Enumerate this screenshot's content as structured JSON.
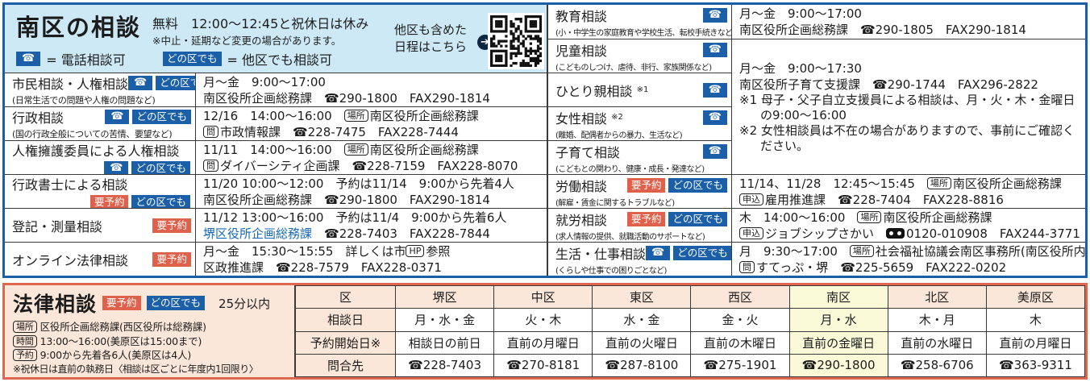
{
  "legend": {
    "tel_symbol": "☎",
    "any_label": "どの区でも",
    "reserve_label": "要予約"
  },
  "colors": {
    "blue": "#1a5fa8",
    "light_blue": "#cde9f6",
    "red_badge": "#e0614b",
    "red_border": "#e0674f",
    "peach": "#fbe7d9",
    "yellow_highlight": "#fafad9",
    "link_blue": "#1667b8"
  },
  "top": {
    "title": "南区の相談",
    "free_label": "無料",
    "hours": "12:00〜12:45と祝休日は休み",
    "note": "※中止・延期など変更の場合があります。",
    "tel_legend_text": "= 電話相談可",
    "any_legend_text": "= 他区でも相談可",
    "qr_caption1": "他区も含めた",
    "qr_caption2": "日程はこちら",
    "arrow_glyph": "➔",
    "left_rows": [
      {
        "name": "市民相談・人権相談",
        "desc": "(日常生活での問題や人権の問題など)",
        "badges": [
          "tel",
          "any"
        ],
        "badges_newline": false,
        "detail": [
          "月〜金　9:00〜17:00",
          "南区役所企画総務課　☎290-1800　FAX290-1814"
        ]
      },
      {
        "name": "行政相談",
        "desc": "(国の行政全般についての苦情、要望など)",
        "badges": [
          "tel",
          "any"
        ],
        "badges_newline": false,
        "detail": [
          "12/16　14:00〜16:00　[[box:場所]]南区役所企画総務課",
          "[[box:問]]市政情報課　☎228-7475　FAX228-7444"
        ]
      },
      {
        "name": "人権擁護委員による人権相談",
        "desc": "",
        "badges": [
          "tel",
          "any"
        ],
        "badges_newline": true,
        "detail": [
          "11/11　14:00〜16:00　[[box:場所]]南区役所企画総務課",
          "[[box:問]]ダイバーシティ企画課　☎228-7159　FAX228-8070"
        ]
      },
      {
        "name": "行政書士による相談",
        "desc": "",
        "badges": [
          "resv",
          "any"
        ],
        "badges_newline": true,
        "detail": [
          "11/20 10:00〜12:00　予約は11/14　9:00から先着4人",
          "南区役所企画総務課　☎290-1800　FAX290-1814"
        ]
      },
      {
        "name": "登記・測量相談",
        "desc": "",
        "badges": [
          "resv"
        ],
        "badges_newline": false,
        "detail": [
          "11/12 13:00〜16:00　予約は11/4　9:00から先着6人",
          "[[blue:堺区役所企画総務課]]　☎228-7403　FAX228-7844"
        ]
      },
      {
        "name": "オンライン法律相談",
        "desc": "",
        "badges": [
          "resv"
        ],
        "badges_newline": false,
        "detail": [
          "月〜金　15:30〜15:55　詳しくは市[[box:HP]]参照",
          "区政推進課　☎228-7579　FAX228-0371"
        ]
      }
    ],
    "right_rows": [
      {
        "name": "教育相談",
        "desc": "(小・中学生の家庭教育や学校生活、転校手続きなど)",
        "badges": [
          "tel"
        ]
      },
      {
        "name": "児童相談",
        "desc": "(こどものしつけ、虐待、非行、家族関係など)",
        "badges": [
          "tel"
        ]
      },
      {
        "name": "ひとり親相談 [[sup:※1]]",
        "desc": "",
        "badges": [
          "tel"
        ]
      },
      {
        "name": "女性相談 [[sup:※2]]",
        "desc": "(離婚、配偶者からの暴力、生活など)",
        "badges": [
          "tel"
        ]
      },
      {
        "name": "子育て相談",
        "desc": "(こどもとの関わり、健康・成長・発達など)",
        "badges": [
          "tel"
        ]
      },
      {
        "name": "労働相談",
        "desc": "(解雇・賃金に関するトラブルなど)",
        "badges": [
          "resv",
          "any"
        ]
      },
      {
        "name": "就労相談",
        "desc": "(求人情報の提供、就職活動のサポートなど)",
        "badges": [
          "resv",
          "any"
        ]
      },
      {
        "name": "生活・仕事相談",
        "desc": "(くらしや仕事での困りごとなど)",
        "badges": [
          "tel",
          "any"
        ]
      }
    ],
    "right_details": [
      {
        "row": 1,
        "span": 1,
        "lines": [
          "月〜金　9:00〜17:00",
          "南区役所企画総務課　☎290-1805　FAX290-1814"
        ]
      },
      {
        "row": 2,
        "span": 4,
        "lines": [
          "月〜金　9:00〜17:30",
          "南区役所子育て支援課　☎290-1744　FAX296-2822",
          "※1 母子・父子自立支援員による相談は、月・火・木・金曜日の9:00〜16:00",
          "※2 女性相談員は不在の場合がありますので、事前にご確認ください。"
        ]
      },
      {
        "row": 6,
        "span": 1,
        "lines": [
          "11/14、11/28　12:45〜15:45　[[box:場所]]南区役所企画総務課",
          "[[box:申込]]雇用推進課　☎228-7404　FAX228-8816"
        ]
      },
      {
        "row": 7,
        "span": 1,
        "lines": [
          "木　14:00〜16:00　[[box:場所]]南区役所企画総務課",
          "[[box:申込]]ジョブシップさかい　[[fd]]0120-010908　FAX244-3771"
        ]
      },
      {
        "row": 8,
        "span": 1,
        "lines": [
          "月　9:30〜17:00　[[box:場所]]社会福祉協議会南区事務所(南区役所内)",
          "[[box:問]]すてっぷ・堺　☎225-5659　FAX222-0202"
        ]
      }
    ]
  },
  "bottom": {
    "title": "法律相談",
    "badges": [
      "resv",
      "any"
    ],
    "duration": "25分以内",
    "info_lines": [
      {
        "tag": "場所",
        "text": "区役所企画総務課(西区役所は総務課)"
      },
      {
        "tag": "時間",
        "text": "13:00〜16:00(美原区は15:00まで)"
      },
      {
        "tag": "予約",
        "text": "9:00から先着各6人(美原区は4人)"
      },
      {
        "tag": "",
        "text": "※祝休日は直前の執務日〈相談は区ごとに年度内1回限り〉"
      }
    ],
    "table": {
      "row_headers": [
        "区",
        "相談日",
        "予約開始日※",
        "問合先"
      ],
      "columns": [
        {
          "ward": "堺区",
          "days": "月・水・金",
          "start": "相談日の前日",
          "tel": "☎228-7403",
          "highlight": false
        },
        {
          "ward": "中区",
          "days": "火・木",
          "start": "直前の月曜日",
          "tel": "☎270-8181",
          "highlight": false
        },
        {
          "ward": "東区",
          "days": "水・金",
          "start": "直前の火曜日",
          "tel": "☎287-8100",
          "highlight": false
        },
        {
          "ward": "西区",
          "days": "金・火",
          "start": "直前の木曜日",
          "tel": "☎275-1901",
          "highlight": false
        },
        {
          "ward": "南区",
          "days": "月・水",
          "start": "直前の金曜日",
          "tel": "☎290-1800",
          "highlight": true
        },
        {
          "ward": "北区",
          "days": "木・月",
          "start": "直前の水曜日",
          "tel": "☎258-6706",
          "highlight": false
        },
        {
          "ward": "美原区",
          "days": "木",
          "start": "直前の月曜日",
          "tel": "☎363-9311",
          "highlight": false
        }
      ]
    }
  }
}
